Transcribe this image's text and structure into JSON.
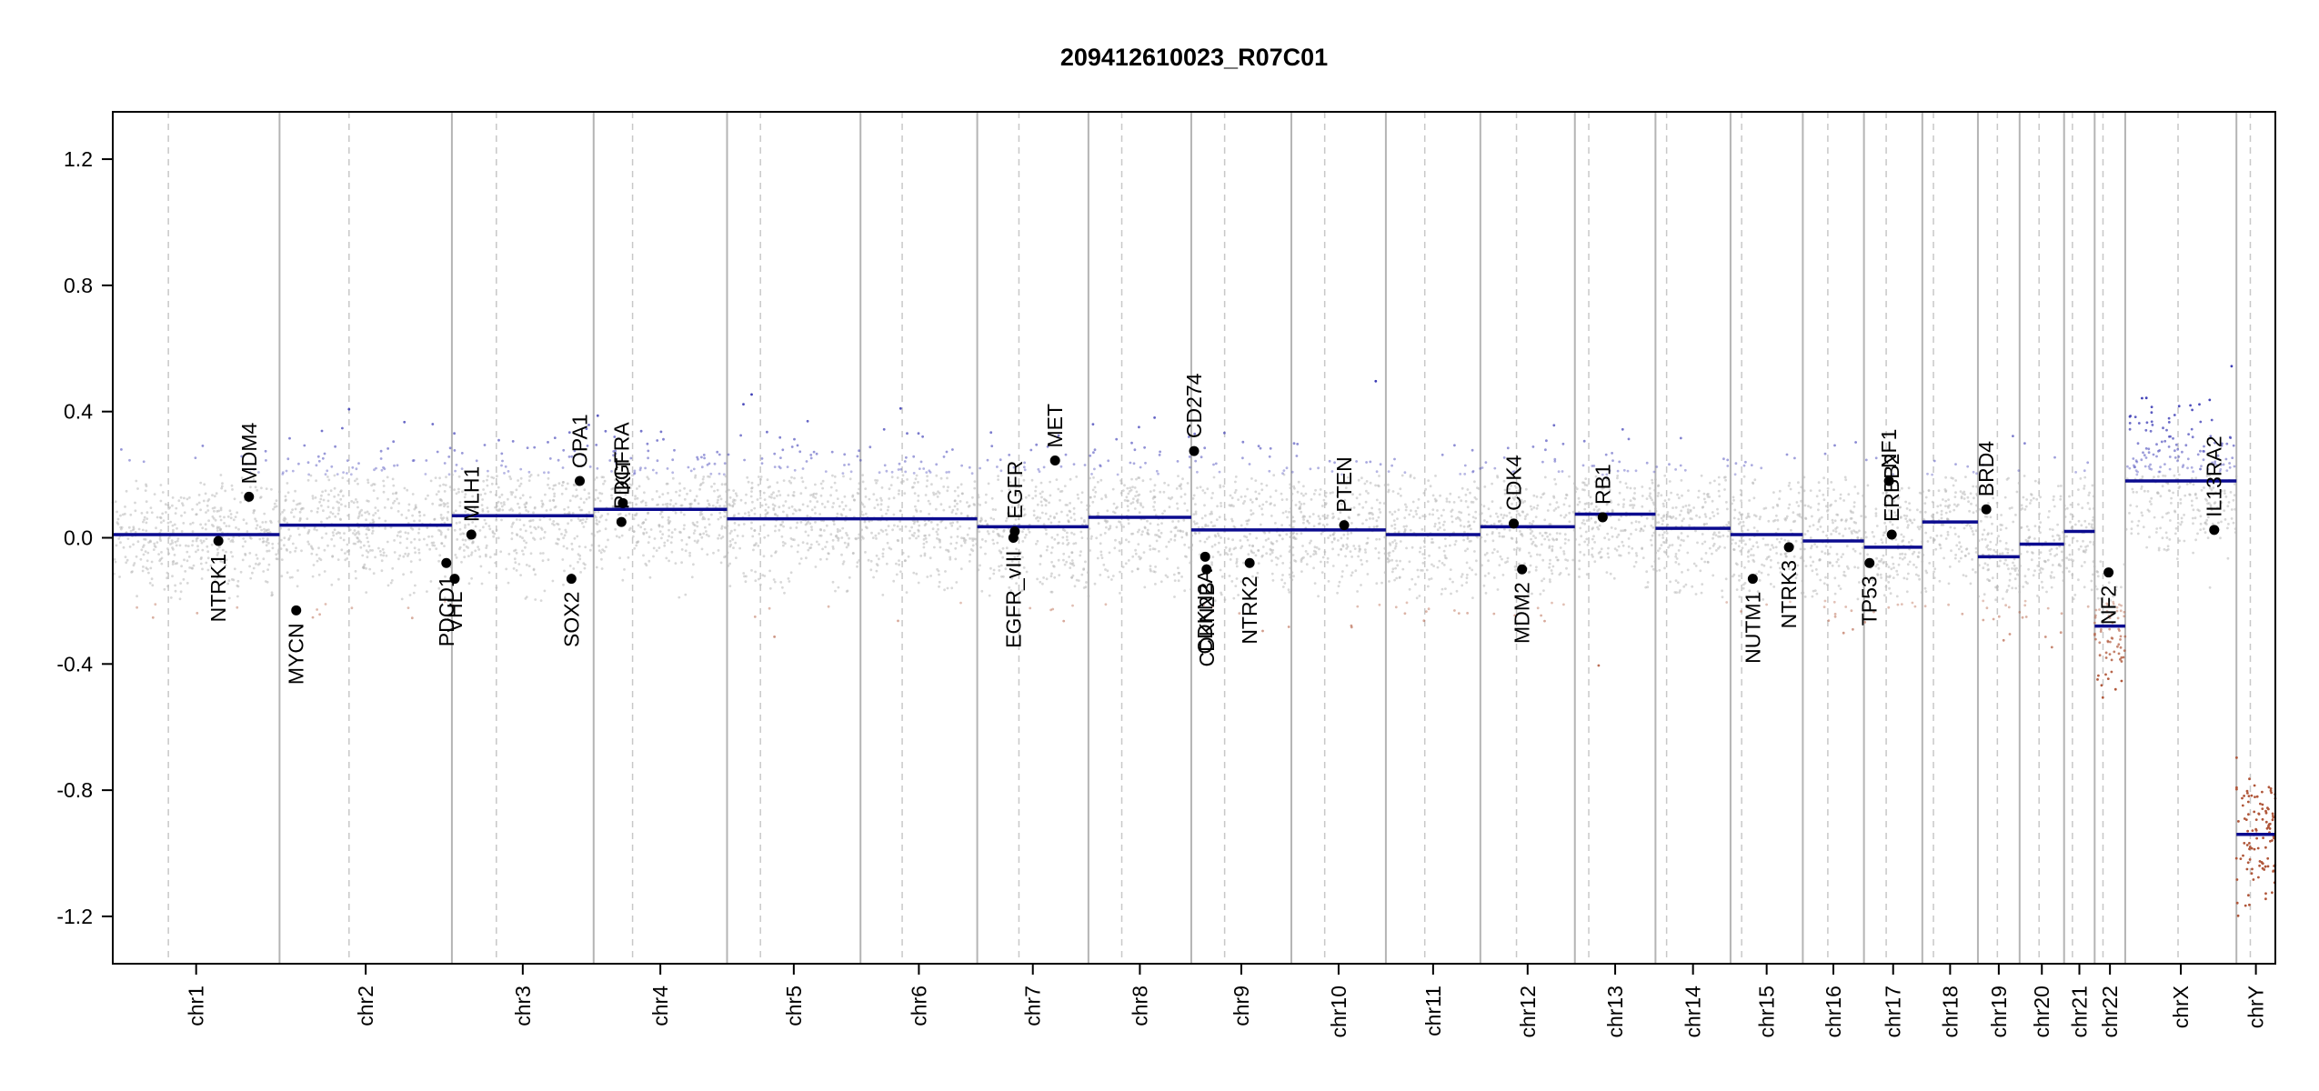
{
  "chart_data": {
    "type": "scatter",
    "title": "209412610023_R07C01",
    "xlabel": "",
    "ylabel": "",
    "ylim": [
      -1.35,
      1.35
    ],
    "grid": false,
    "y_ticks": [
      -1.2,
      -0.8,
      -0.4,
      0.0,
      0.4,
      0.8,
      1.2
    ],
    "y_tick_labels": [
      "-1.2",
      "-0.8",
      "-0.4",
      "0.0",
      "0.4",
      "0.8",
      "1.2"
    ],
    "colors": {
      "segment": "#0b0b8f",
      "gain_points": "#3b3bb5",
      "loss_points": "#b0573a",
      "neutral_points": "#b8b8b8",
      "chrom_boundary": "#b4b4b4",
      "centromere": "#c8c8c8",
      "gene_marker": "#000000"
    },
    "chromosomes": [
      {
        "name": "chr1",
        "start": 0.0,
        "end": 6.0,
        "centromere": 2.0,
        "segment": 0.01,
        "noise": 0.1
      },
      {
        "name": "chr2",
        "start": 6.0,
        "end": 12.2,
        "centromere": 8.5,
        "segment": 0.04,
        "noise": 0.11
      },
      {
        "name": "chr3",
        "start": 12.2,
        "end": 17.3,
        "centromere": 13.8,
        "segment": 0.07,
        "noise": 0.11
      },
      {
        "name": "chr4",
        "start": 17.3,
        "end": 22.1,
        "centromere": 18.7,
        "segment": 0.09,
        "noise": 0.1
      },
      {
        "name": "chr5",
        "start": 22.1,
        "end": 26.9,
        "centromere": 23.3,
        "segment": 0.06,
        "noise": 0.11
      },
      {
        "name": "chr6",
        "start": 26.9,
        "end": 31.1,
        "centromere": 28.4,
        "segment": 0.06,
        "noise": 0.11
      },
      {
        "name": "chr7",
        "start": 31.1,
        "end": 35.1,
        "centromere": 32.6,
        "segment": 0.035,
        "noise": 0.11
      },
      {
        "name": "chr8",
        "start": 35.1,
        "end": 38.8,
        "centromere": 36.3,
        "segment": 0.065,
        "noise": 0.11
      },
      {
        "name": "chr9",
        "start": 38.8,
        "end": 42.4,
        "centromere": 40.0,
        "segment": 0.025,
        "noise": 0.11
      },
      {
        "name": "chr10",
        "start": 42.4,
        "end": 45.8,
        "centromere": 43.6,
        "segment": 0.025,
        "noise": 0.11
      },
      {
        "name": "chr11",
        "start": 45.8,
        "end": 49.2,
        "centromere": 47.2,
        "segment": 0.01,
        "noise": 0.11
      },
      {
        "name": "chr12",
        "start": 49.2,
        "end": 52.6,
        "centromere": 50.5,
        "segment": 0.035,
        "noise": 0.11
      },
      {
        "name": "chr13",
        "start": 52.6,
        "end": 55.5,
        "centromere": 53.1,
        "segment": 0.075,
        "noise": 0.1
      },
      {
        "name": "chr14",
        "start": 55.5,
        "end": 58.2,
        "centromere": 55.9,
        "segment": 0.03,
        "noise": 0.1
      },
      {
        "name": "chr15",
        "start": 58.2,
        "end": 60.8,
        "centromere": 58.6,
        "segment": 0.01,
        "noise": 0.11
      },
      {
        "name": "chr16",
        "start": 60.8,
        "end": 63.0,
        "centromere": 61.7,
        "segment": -0.01,
        "noise": 0.11
      },
      {
        "name": "chr17",
        "start": 63.0,
        "end": 65.1,
        "centromere": 63.8,
        "segment": -0.03,
        "noise": 0.11
      },
      {
        "name": "chr18",
        "start": 65.1,
        "end": 67.1,
        "centromere": 65.5,
        "segment": 0.05,
        "noise": 0.11
      },
      {
        "name": "chr19",
        "start": 67.1,
        "end": 68.6,
        "centromere": 67.8,
        "segment": -0.06,
        "noise": 0.1
      },
      {
        "name": "chr20",
        "start": 68.6,
        "end": 70.2,
        "centromere": 69.3,
        "segment": -0.02,
        "noise": 0.11
      },
      {
        "name": "chr21",
        "start": 70.2,
        "end": 71.3,
        "centromere": 70.5,
        "segment": 0.02,
        "noise": 0.11
      },
      {
        "name": "chr22",
        "start": 71.3,
        "end": 72.4,
        "centromere": 71.6,
        "segment": -0.28,
        "noise": 0.1
      },
      {
        "name": "chrX",
        "start": 72.4,
        "end": 76.4,
        "centromere": 74.3,
        "segment": 0.18,
        "noise": 0.11
      },
      {
        "name": "chrY",
        "start": 76.4,
        "end": 77.8,
        "centromere": 76.9,
        "segment": -0.94,
        "noise": 0.1
      }
    ],
    "segments": [
      {
        "chrom": "chr1",
        "x0": 0.0,
        "x1": 6.0,
        "value": 0.01
      },
      {
        "chrom": "chr2",
        "x0": 6.0,
        "x1": 12.2,
        "value": 0.04
      },
      {
        "chrom": "chr3",
        "x0": 12.2,
        "x1": 17.3,
        "value": 0.07
      },
      {
        "chrom": "chr4",
        "x0": 17.3,
        "x1": 22.1,
        "value": 0.09
      },
      {
        "chrom": "chr5",
        "x0": 22.1,
        "x1": 26.9,
        "value": 0.06
      },
      {
        "chrom": "chr6",
        "x0": 26.9,
        "x1": 31.1,
        "value": 0.06
      },
      {
        "chrom": "chr7",
        "x0": 31.1,
        "x1": 35.1,
        "value": 0.035
      },
      {
        "chrom": "chr8",
        "x0": 35.1,
        "x1": 38.8,
        "value": 0.065
      },
      {
        "chrom": "chr9",
        "x0": 38.8,
        "x1": 42.4,
        "value": 0.025
      },
      {
        "chrom": "chr10",
        "x0": 42.4,
        "x1": 45.8,
        "value": 0.025
      },
      {
        "chrom": "chr11",
        "x0": 45.8,
        "x1": 49.2,
        "value": 0.01
      },
      {
        "chrom": "chr12",
        "x0": 49.2,
        "x1": 52.6,
        "value": 0.035
      },
      {
        "chrom": "chr13",
        "x0": 52.6,
        "x1": 55.5,
        "value": 0.075
      },
      {
        "chrom": "chr14",
        "x0": 55.5,
        "x1": 58.2,
        "value": 0.03
      },
      {
        "chrom": "chr15",
        "x0": 58.2,
        "x1": 60.8,
        "value": 0.01
      },
      {
        "chrom": "chr16",
        "x0": 60.8,
        "x1": 63.0,
        "value": -0.01
      },
      {
        "chrom": "chr17",
        "x0": 63.0,
        "x1": 65.1,
        "value": -0.03
      },
      {
        "chrom": "chr18",
        "x0": 65.1,
        "x1": 67.1,
        "value": 0.05
      },
      {
        "chrom": "chr19",
        "x0": 67.1,
        "x1": 68.6,
        "value": -0.06
      },
      {
        "chrom": "chr20",
        "x0": 68.6,
        "x1": 70.2,
        "value": -0.02
      },
      {
        "chrom": "chr21",
        "x0": 70.2,
        "x1": 71.3,
        "value": 0.02
      },
      {
        "chrom": "chr22",
        "x0": 71.3,
        "x1": 72.4,
        "value": -0.28
      },
      {
        "chrom": "chrX",
        "x0": 72.4,
        "x1": 76.4,
        "value": 0.18
      },
      {
        "chrom": "chrY",
        "x0": 76.4,
        "x1": 77.8,
        "value": -0.94
      }
    ],
    "genes": [
      {
        "name": "NTRK1",
        "x": 3.8,
        "y": -0.01,
        "label_side": "below"
      },
      {
        "name": "MDM4",
        "x": 4.9,
        "y": 0.13,
        "label_side": "above"
      },
      {
        "name": "MYCN",
        "x": 6.6,
        "y": -0.23,
        "label_side": "below"
      },
      {
        "name": "PDCD1",
        "x": 12.0,
        "y": -0.08,
        "label_side": "below"
      },
      {
        "name": "VHL",
        "x": 12.3,
        "y": -0.13,
        "label_side": "below"
      },
      {
        "name": "MLH1",
        "x": 12.9,
        "y": 0.01,
        "label_side": "above"
      },
      {
        "name": "SOX2",
        "x": 16.5,
        "y": -0.13,
        "label_side": "below"
      },
      {
        "name": "OPA1",
        "x": 16.8,
        "y": 0.18,
        "label_side": "above"
      },
      {
        "name": "PDGFRA",
        "x": 18.3,
        "y": 0.05,
        "label_side": "above"
      },
      {
        "name": "KIT",
        "x": 18.35,
        "y": 0.11,
        "label_side": "above"
      },
      {
        "name": "EGFR_vIII",
        "x": 32.4,
        "y": 0.0,
        "label_side": "below"
      },
      {
        "name": "EGFR",
        "x": 32.45,
        "y": 0.02,
        "label_side": "above"
      },
      {
        "name": "MET",
        "x": 33.9,
        "y": 0.245,
        "label_side": "above"
      },
      {
        "name": "CD274",
        "x": 38.9,
        "y": 0.275,
        "label_side": "above"
      },
      {
        "name": "CDKN2A",
        "x": 39.3,
        "y": -0.06,
        "label_side": "below"
      },
      {
        "name": "CDKN2B",
        "x": 39.35,
        "y": -0.1,
        "label_side": "below"
      },
      {
        "name": "NTRK2",
        "x": 40.9,
        "y": -0.08,
        "label_side": "below"
      },
      {
        "name": "PTEN",
        "x": 44.3,
        "y": 0.04,
        "label_side": "above"
      },
      {
        "name": "CDK4",
        "x": 50.4,
        "y": 0.045,
        "label_side": "above"
      },
      {
        "name": "MDM2",
        "x": 50.7,
        "y": -0.1,
        "label_side": "below"
      },
      {
        "name": "RB1",
        "x": 53.6,
        "y": 0.065,
        "label_side": "above"
      },
      {
        "name": "NUTM1",
        "x": 59.0,
        "y": -0.13,
        "label_side": "below"
      },
      {
        "name": "NTRK3",
        "x": 60.3,
        "y": -0.03,
        "label_side": "below"
      },
      {
        "name": "TP53",
        "x": 63.2,
        "y": -0.08,
        "label_side": "below"
      },
      {
        "name": "NF1",
        "x": 63.9,
        "y": 0.18,
        "label_side": "above"
      },
      {
        "name": "ERBB2",
        "x": 64.0,
        "y": 0.01,
        "label_side": "above"
      },
      {
        "name": "BRD4",
        "x": 67.4,
        "y": 0.09,
        "label_side": "above"
      },
      {
        "name": "NF2",
        "x": 71.8,
        "y": -0.11,
        "label_side": "below"
      },
      {
        "name": "IL13RA2",
        "x": 75.6,
        "y": 0.025,
        "label_side": "above"
      }
    ]
  }
}
